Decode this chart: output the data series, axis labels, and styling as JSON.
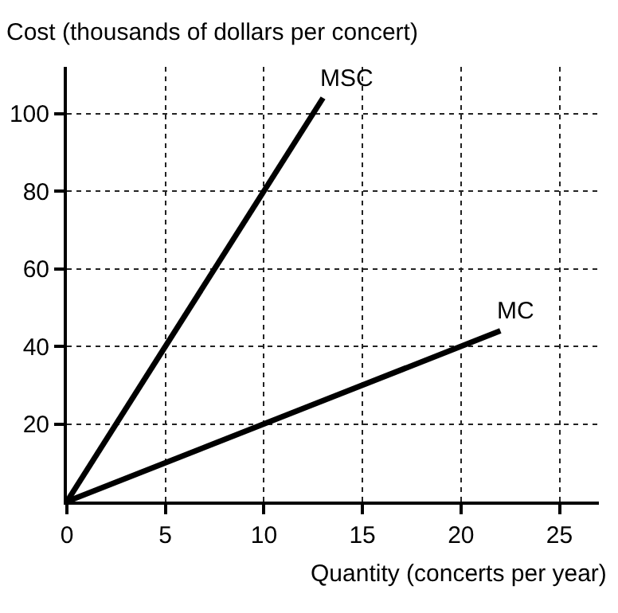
{
  "chart_data": {
    "type": "line",
    "xlabel": "Quantity (concerts per year)",
    "ylabel": "Cost (thousands of dollars per concert)",
    "xlim": [
      0,
      27
    ],
    "ylim": [
      0,
      112
    ],
    "xticks": [
      0,
      5,
      10,
      15,
      20,
      25
    ],
    "yticks": [
      20,
      40,
      60,
      80,
      100
    ],
    "grid": true,
    "legend": false,
    "marker": "none",
    "line_style": "solid",
    "series": [
      {
        "name": "MSC",
        "color": "#000000",
        "x": [
          0,
          13
        ],
        "values": [
          0,
          104
        ]
      },
      {
        "name": "MC",
        "color": "#000000",
        "x": [
          0,
          22
        ],
        "values": [
          0,
          44
        ]
      }
    ]
  }
}
